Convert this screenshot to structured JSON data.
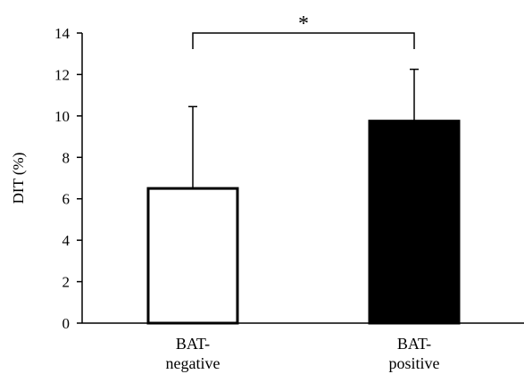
{
  "chart_data": {
    "type": "bar",
    "title": "",
    "xlabel": "",
    "ylabel": "DIT (%)",
    "ylim": [
      0,
      14
    ],
    "yticks": [
      "0",
      "2",
      "4",
      "6",
      "8",
      "10",
      "12",
      "14"
    ],
    "categories": [
      {
        "line1": "BAT-",
        "line2": "negative"
      },
      {
        "line1": "BAT-",
        "line2": "positive"
      }
    ],
    "values": [
      6.5,
      9.75
    ],
    "error_upper": [
      3.95,
      2.5
    ],
    "bar_colors": [
      "#ffffff",
      "#000000"
    ],
    "significance": {
      "between": [
        0,
        1
      ],
      "label": "*"
    },
    "grid": false,
    "legend": "none"
  }
}
